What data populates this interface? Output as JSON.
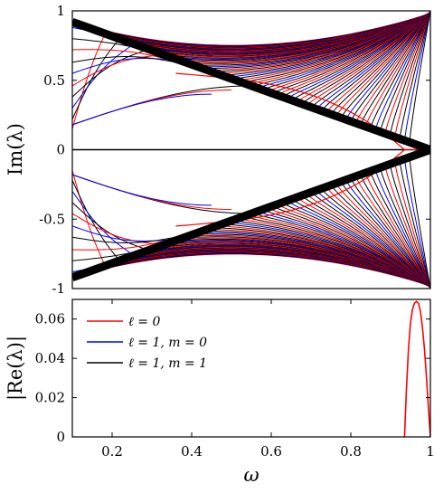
{
  "chart_data": [
    {
      "panel": "top",
      "type": "line",
      "ylabel": "Im(λ)",
      "xlim": [
        0.1,
        1.0
      ],
      "ylim": [
        -1,
        1
      ],
      "y_ticks": [
        "1",
        "0.5",
        "0",
        "-0.5",
        "-1"
      ],
      "y_tick_values": [
        1,
        0.5,
        0,
        -0.5,
        -1
      ],
      "curves": {
        "envelope": {
          "x": [
            0.1,
            1.0
          ],
          "y_upper": [
            0.92,
            0.0
          ],
          "y_lower": [
            -0.92,
            0.0
          ],
          "note_color": "#000000"
        },
        "zero_line": {
          "x": [
            0.1,
            1.0
          ],
          "y": [
            0,
            0
          ],
          "color": "#000000"
        },
        "loop_l0": {
          "x_start": 0.36,
          "x_tip": 0.935,
          "y_start": 0.55,
          "color": "#ff0000"
        }
      }
    },
    {
      "panel": "bottom",
      "type": "line",
      "xlabel": "ω",
      "ylabel": "|Re(λ)|",
      "xlim": [
        0.1,
        1.0
      ],
      "ylim": [
        0,
        0.07
      ],
      "x_ticks": [
        "0.2",
        "0.4",
        "0.6",
        "0.8",
        "1"
      ],
      "x_tick_values": [
        0.2,
        0.4,
        0.6,
        0.8,
        1.0
      ],
      "y_ticks": [
        "0.06",
        "0.04",
        "0.02",
        "0"
      ],
      "y_tick_values": [
        0.06,
        0.04,
        0.02,
        0
      ],
      "legend": {
        "placement": "top-left",
        "entries": [
          {
            "label": "ℓ = 0",
            "color": "#ff0000"
          },
          {
            "label": "ℓ = 1,  m = 0",
            "color": "#0000ff"
          },
          {
            "label": "ℓ = 1,  m = 1",
            "color": "#000000"
          }
        ]
      },
      "series": [
        {
          "name": "ℓ = 0",
          "color": "#ff0000",
          "x": [
            0.935,
            0.94,
            0.945,
            0.95,
            0.955,
            0.96,
            0.965,
            0.97,
            0.975,
            0.98,
            0.985,
            0.99,
            0.995,
            1.0
          ],
          "y": [
            0.0,
            0.025,
            0.045,
            0.058,
            0.065,
            0.068,
            0.069,
            0.068,
            0.064,
            0.056,
            0.045,
            0.031,
            0.015,
            0.0
          ]
        }
      ]
    }
  ]
}
